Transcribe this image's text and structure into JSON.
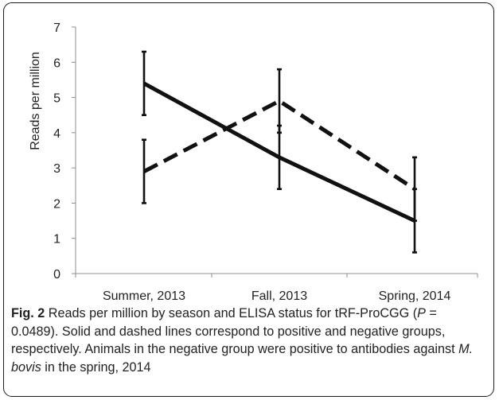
{
  "chart_data": {
    "type": "line",
    "categories": [
      "Summer, 2013",
      "Fall, 2013",
      "Spring, 2014"
    ],
    "ylabel": "Reads per million",
    "xlabel": "",
    "ylim": [
      0,
      7
    ],
    "yticks": [
      0,
      1,
      2,
      3,
      4,
      5,
      6,
      7
    ],
    "grid": false,
    "legend": "none",
    "series": [
      {
        "style": "solid",
        "color": "#111111",
        "values": [
          5.4,
          3.3,
          1.5
        ],
        "error_low": [
          4.5,
          2.4,
          0.6
        ],
        "error_high": [
          6.3,
          4.2,
          2.4
        ]
      },
      {
        "style": "dashed",
        "color": "#111111",
        "values": [
          2.9,
          4.9,
          2.4
        ],
        "error_low": [
          2.0,
          4.0,
          1.5
        ],
        "error_high": [
          3.8,
          5.8,
          3.3
        ]
      }
    ]
  },
  "caption": {
    "fig_label": "Fig. 2",
    "text1": " Reads per million by season and ELISA status for tRF-ProCGG (",
    "p_symbol": "P",
    "text2": " = 0.0489). Solid and dashed lines correspond to positive and negative groups, respectively. Animals in the negative group were positive to antibodies against ",
    "species": "M. bovis",
    "text3": " in the spring, 2014"
  }
}
